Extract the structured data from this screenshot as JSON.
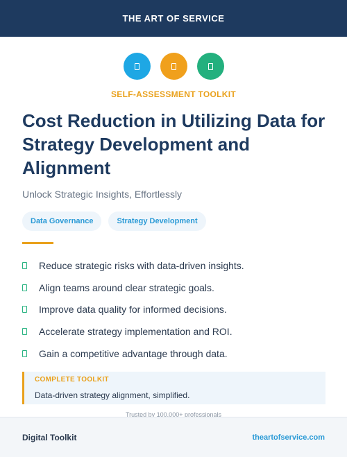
{
  "header": {
    "brand": "THE ART OF SERVICE"
  },
  "icons": [
    {
      "name": "document-icon",
      "color": "#1ea7e4"
    },
    {
      "name": "document-icon",
      "color": "#f0a01c"
    },
    {
      "name": "document-icon",
      "color": "#23b07e"
    }
  ],
  "kicker": "SELF-ASSESSMENT TOOLKIT",
  "title": "Cost Reduction in Utilizing Data for Strategy Development and Alignment",
  "subtitle": "Unlock Strategic Insights, Effortlessly",
  "tags": [
    "Data Governance",
    "Strategy Development"
  ],
  "benefits": [
    "Reduce strategic risks with data-driven insights.",
    "Align teams around clear strategic goals.",
    "Improve data quality for informed decisions.",
    "Accelerate strategy implementation and ROI.",
    "Gain a competitive advantage through data."
  ],
  "callout": {
    "label": "COMPLETE TOOLKIT",
    "text": "Data-driven strategy alignment, simplified."
  },
  "trusted": "Trusted by 100,000+ professionals",
  "footer": {
    "left": "Digital Toolkit",
    "right": "theartofservice.com"
  },
  "colors": {
    "navy": "#1e3a5f",
    "accent_orange": "#e9a11c",
    "accent_blue": "#2a9ad6",
    "check_green": "#28b381"
  }
}
